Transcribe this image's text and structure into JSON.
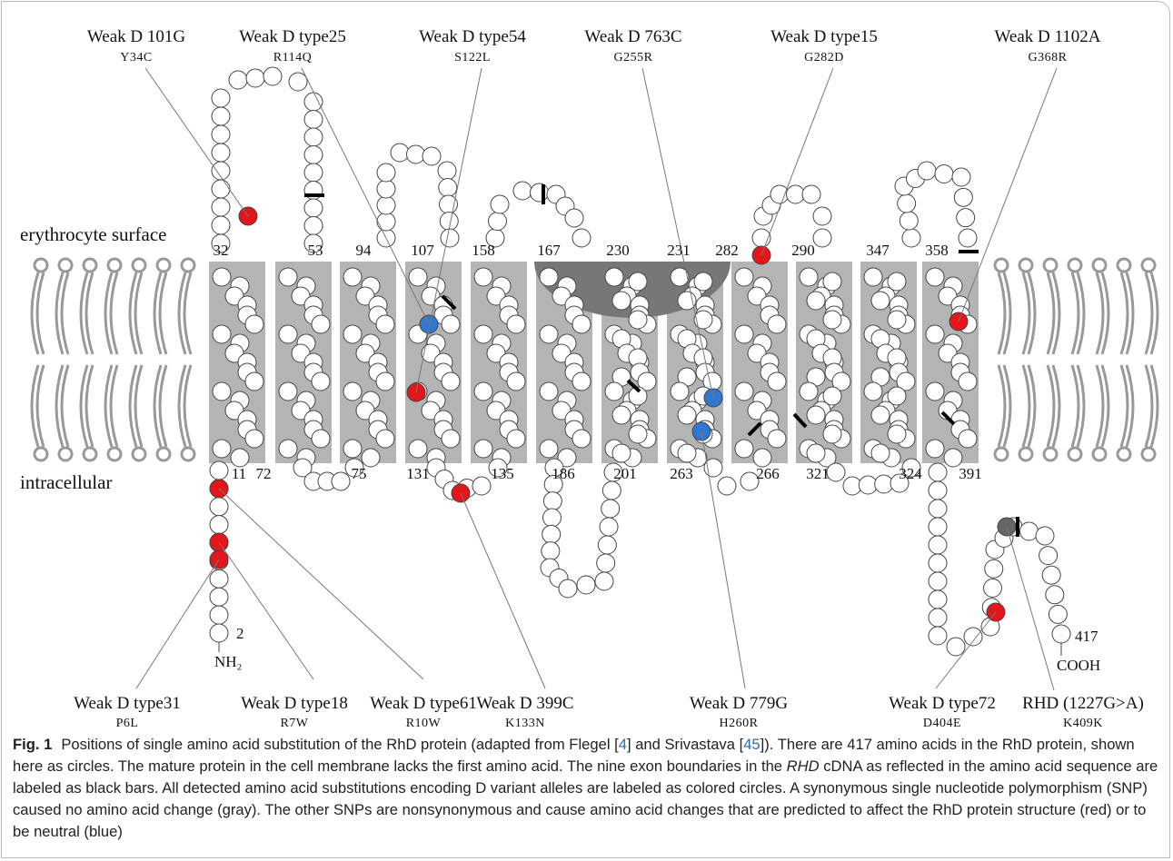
{
  "figure": {
    "side_labels": [
      "erythrocyte surface",
      "intracellular"
    ],
    "top_variants": [
      {
        "name": "Weak D 101G",
        "mutation": "Y34C"
      },
      {
        "name": "Weak D type25",
        "mutation": "R114Q"
      },
      {
        "name": "Weak D type54",
        "mutation": "S122L"
      },
      {
        "name": "Weak D 763C",
        "mutation": "G255R"
      },
      {
        "name": "Weak D type15",
        "mutation": "G282D"
      },
      {
        "name": "Weak D 1102A",
        "mutation": "G368R"
      }
    ],
    "bottom_variants": [
      {
        "name": "Weak D type31",
        "mutation": "P6L"
      },
      {
        "name": "Weak D type18",
        "mutation": "R7W"
      },
      {
        "name": "Weak D type61",
        "mutation": "R10W"
      },
      {
        "name": "Weak D 399C",
        "mutation": "K133N"
      },
      {
        "name": "Weak D 779G",
        "mutation": "H260R"
      },
      {
        "name": "Weak D type72",
        "mutation": "D404E"
      },
      {
        "name": "RHD (1227G>A)",
        "mutation": "K409K"
      }
    ],
    "top_residues": [
      "32",
      "53",
      "94",
      "107",
      "158",
      "167",
      "230",
      "231",
      "282",
      "290",
      "347",
      "358"
    ],
    "bottom_residues": [
      "11",
      "72",
      "75",
      "131",
      "135",
      "186",
      "201",
      "263",
      "266",
      "321",
      "324",
      "391"
    ],
    "n_terminus": {
      "number": "2",
      "label": "NH₂"
    },
    "c_terminus": {
      "number": "417",
      "label": "COOH"
    }
  },
  "caption": {
    "label": "Fig. 1",
    "segments": [
      "Positions of single amino acid substitution of the RhD protein (adapted from Flegel [",
      "4",
      "] and Srivastava [",
      "45",
      "]). There are 417 amino acids in the RhD protein, shown here as circles. The mature protein in the cell membrane lacks the first amino acid. The nine exon boundaries in the ",
      "RHD",
      " cDNA as reflected in the amino acid sequence are labeled as black bars. All detected amino acid substitutions encoding D variant alleles are labeled as colored circles. A synonymous single nucleotide polymorphism (SNP) caused no amino acid change (gray). The other SNPs are nonsynonymous and cause amino acid changes that are predicted to affect the RhD protein structure (red) or to be neutral (blue)"
    ]
  }
}
